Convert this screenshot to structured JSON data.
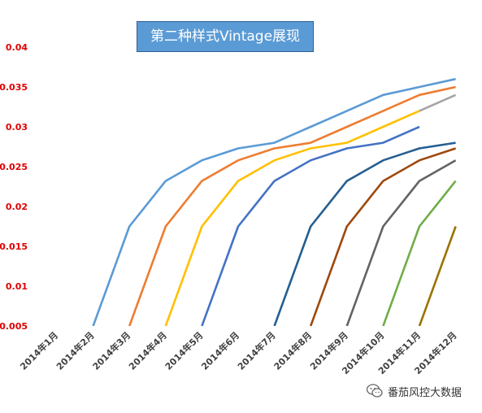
{
  "chart_data": {
    "type": "line",
    "title": "第二种样式Vintage展现",
    "categories": [
      "2014年1月",
      "2014年2月",
      "2014年3月",
      "2014年4月",
      "2014年5月",
      "2014年6月",
      "2014年7月",
      "2014年8月",
      "2014年9月",
      "2014年10月",
      "2014年11月",
      "2014年12月"
    ],
    "y_ticks": [
      "0.005",
      "0.01",
      "0.015",
      "0.02",
      "0.025",
      "0.03",
      "0.035",
      "0.04"
    ],
    "ylim": [
      0.005,
      0.04
    ],
    "grid": false,
    "series": [
      {
        "color": "#5b9bd5",
        "values": [
          null,
          0.005,
          0.0175,
          0.0232,
          0.0258,
          0.0273,
          0.028,
          0.03,
          0.032,
          0.034,
          0.035,
          0.036
        ]
      },
      {
        "color": "#ed7d31",
        "values": [
          null,
          null,
          0.005,
          0.0175,
          0.0232,
          0.0258,
          0.0273,
          0.028,
          0.03,
          0.032,
          0.034,
          0.035
        ]
      },
      {
        "color": "#a5a5a5",
        "values": [
          null,
          null,
          null,
          null,
          null,
          null,
          null,
          null,
          null,
          null,
          0.032,
          0.034
        ]
      },
      {
        "color": "#ffc000",
        "values": [
          null,
          null,
          null,
          0.005,
          0.0175,
          0.0232,
          0.0258,
          0.0273,
          0.028,
          0.03,
          0.032,
          null
        ]
      },
      {
        "color": "#4472c4",
        "values": [
          null,
          null,
          null,
          null,
          0.005,
          0.0175,
          0.0232,
          0.0258,
          0.0273,
          0.028,
          0.03,
          null
        ]
      },
      {
        "color": "#255e91",
        "values": [
          null,
          null,
          null,
          null,
          null,
          null,
          0.005,
          0.0175,
          0.0232,
          0.0258,
          0.0273,
          0.028
        ]
      },
      {
        "color": "#9e480e",
        "values": [
          null,
          null,
          null,
          null,
          null,
          null,
          null,
          0.005,
          0.0175,
          0.0232,
          0.0258,
          0.0273
        ]
      },
      {
        "color": "#636363",
        "values": [
          null,
          null,
          null,
          null,
          null,
          null,
          null,
          null,
          0.005,
          0.0175,
          0.0232,
          0.0258
        ]
      },
      {
        "color": "#70ad47",
        "values": [
          null,
          null,
          null,
          null,
          null,
          null,
          null,
          null,
          null,
          0.005,
          0.0175,
          0.0232
        ]
      },
      {
        "color": "#997300",
        "values": [
          null,
          null,
          null,
          null,
          null,
          null,
          null,
          null,
          null,
          null,
          0.005,
          0.0175
        ]
      }
    ]
  },
  "watermark": {
    "text": "番茄风控大数据",
    "icon": "wechat-icon",
    "color": "#333333"
  }
}
